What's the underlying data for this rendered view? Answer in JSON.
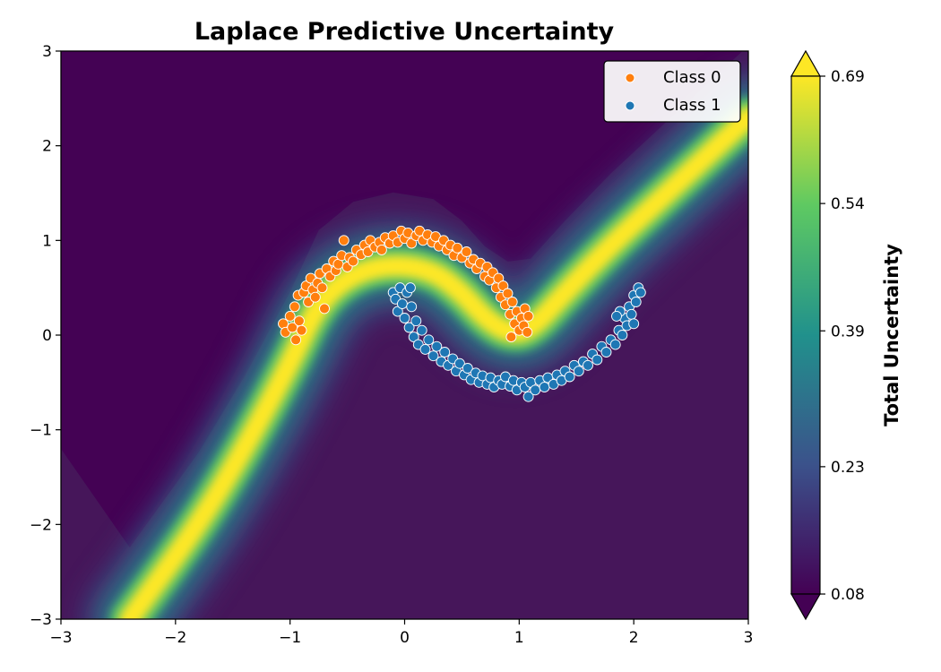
{
  "chart_data": {
    "type": "heatmap",
    "title": "Laplace Predictive Uncertainty",
    "xlabel": "",
    "ylabel": "",
    "xlim": [
      -3,
      3
    ],
    "ylim": [
      -3,
      3
    ],
    "x_ticks": [
      -3,
      -2,
      -1,
      0,
      1,
      2,
      3
    ],
    "y_ticks": [
      -3,
      -2,
      -1,
      0,
      1,
      2,
      3
    ],
    "x_tick_labels": [
      "−3",
      "−2",
      "−1",
      "0",
      "1",
      "2",
      "3"
    ],
    "y_tick_labels": [
      "−3",
      "−2",
      "−1",
      "0",
      "1",
      "2",
      "3"
    ],
    "colormap": "viridis",
    "colorbar": {
      "label": "Total Uncertainty",
      "range": [
        0.08,
        0.69
      ],
      "ticks": [
        0.08,
        0.23,
        0.39,
        0.54,
        0.69
      ],
      "tick_labels": [
        "0.08",
        "0.23",
        "0.39",
        "0.54",
        "0.69"
      ],
      "extend": "both"
    },
    "legend": {
      "position": "top-right",
      "entries": [
        {
          "label": "Class 0",
          "color": "#ff7f0e"
        },
        {
          "label": "Class 1",
          "color": "#1f77b4"
        }
      ]
    },
    "decision_boundary": [
      [
        -2.4,
        -3.0
      ],
      [
        -1.8,
        -2.0
      ],
      [
        -1.4,
        -1.2
      ],
      [
        -1.0,
        -0.3
      ],
      [
        -0.75,
        0.35
      ],
      [
        -0.45,
        0.65
      ],
      [
        -0.1,
        0.75
      ],
      [
        0.25,
        0.68
      ],
      [
        0.5,
        0.45
      ],
      [
        0.7,
        0.18
      ],
      [
        0.9,
        0.02
      ],
      [
        1.1,
        0.05
      ],
      [
        1.4,
        0.45
      ],
      [
        1.8,
        0.95
      ],
      [
        2.2,
        1.4
      ],
      [
        2.6,
        1.85
      ],
      [
        3.0,
        2.3
      ]
    ],
    "series": [
      {
        "name": "Class 0",
        "color": "#ff7f0e",
        "points": [
          [
            -1.06,
            0.12
          ],
          [
            -1.04,
            0.03
          ],
          [
            -1.0,
            0.2
          ],
          [
            -0.98,
            0.08
          ],
          [
            -0.96,
            0.3
          ],
          [
            -0.95,
            -0.05
          ],
          [
            -0.93,
            0.42
          ],
          [
            -0.92,
            0.15
          ],
          [
            -0.9,
            0.05
          ],
          [
            -0.88,
            0.45
          ],
          [
            -0.86,
            0.52
          ],
          [
            -0.84,
            0.35
          ],
          [
            -0.82,
            0.6
          ],
          [
            -0.8,
            0.48
          ],
          [
            -0.78,
            0.4
          ],
          [
            -0.76,
            0.55
          ],
          [
            -0.74,
            0.65
          ],
          [
            -0.72,
            0.5
          ],
          [
            -0.7,
            0.28
          ],
          [
            -0.68,
            0.7
          ],
          [
            -0.65,
            0.62
          ],
          [
            -0.62,
            0.78
          ],
          [
            -0.6,
            0.68
          ],
          [
            -0.58,
            0.75
          ],
          [
            -0.55,
            0.84
          ],
          [
            -0.53,
            1.0
          ],
          [
            -0.5,
            0.72
          ],
          [
            -0.48,
            0.82
          ],
          [
            -0.45,
            0.78
          ],
          [
            -0.42,
            0.9
          ],
          [
            -0.38,
            0.85
          ],
          [
            -0.35,
            0.95
          ],
          [
            -0.32,
            0.88
          ],
          [
            -0.3,
            1.0
          ],
          [
            -0.26,
            0.93
          ],
          [
            -0.22,
            0.98
          ],
          [
            -0.2,
            0.9
          ],
          [
            -0.17,
            1.03
          ],
          [
            -0.13,
            0.97
          ],
          [
            -0.1,
            1.05
          ],
          [
            -0.06,
            0.98
          ],
          [
            -0.03,
            1.1
          ],
          [
            0.0,
            1.02
          ],
          [
            0.03,
            1.08
          ],
          [
            0.06,
            0.97
          ],
          [
            0.1,
            1.05
          ],
          [
            0.13,
            1.1
          ],
          [
            0.16,
            1.0
          ],
          [
            0.2,
            1.06
          ],
          [
            0.24,
            0.98
          ],
          [
            0.27,
            1.04
          ],
          [
            0.3,
            0.94
          ],
          [
            0.34,
            1.0
          ],
          [
            0.37,
            0.9
          ],
          [
            0.4,
            0.95
          ],
          [
            0.43,
            0.84
          ],
          [
            0.46,
            0.92
          ],
          [
            0.5,
            0.82
          ],
          [
            0.54,
            0.88
          ],
          [
            0.57,
            0.76
          ],
          [
            0.6,
            0.8
          ],
          [
            0.63,
            0.7
          ],
          [
            0.66,
            0.76
          ],
          [
            0.7,
            0.62
          ],
          [
            0.72,
            0.72
          ],
          [
            0.74,
            0.58
          ],
          [
            0.77,
            0.66
          ],
          [
            0.8,
            0.5
          ],
          [
            0.82,
            0.6
          ],
          [
            0.84,
            0.4
          ],
          [
            0.86,
            0.52
          ],
          [
            0.88,
            0.32
          ],
          [
            0.9,
            0.44
          ],
          [
            0.92,
            0.22
          ],
          [
            0.94,
            0.35
          ],
          [
            0.96,
            0.12
          ],
          [
            0.98,
            0.25
          ],
          [
            1.0,
            0.05
          ],
          [
            1.02,
            0.18
          ],
          [
            1.04,
            0.1
          ],
          [
            1.05,
            0.28
          ],
          [
            1.07,
            0.03
          ],
          [
            0.93,
            -0.02
          ],
          [
            1.08,
            0.2
          ]
        ]
      },
      {
        "name": "Class 1",
        "color": "#1f77b4",
        "points": [
          [
            -0.1,
            0.45
          ],
          [
            -0.08,
            0.38
          ],
          [
            -0.06,
            0.25
          ],
          [
            -0.04,
            0.5
          ],
          [
            -0.02,
            0.33
          ],
          [
            0.0,
            0.18
          ],
          [
            0.02,
            0.45
          ],
          [
            0.04,
            0.08
          ],
          [
            0.06,
            0.3
          ],
          [
            0.08,
            -0.02
          ],
          [
            0.1,
            0.15
          ],
          [
            0.12,
            -0.1
          ],
          [
            0.15,
            0.05
          ],
          [
            0.18,
            -0.15
          ],
          [
            0.21,
            -0.05
          ],
          [
            0.25,
            -0.22
          ],
          [
            0.28,
            -0.12
          ],
          [
            0.32,
            -0.28
          ],
          [
            0.35,
            -0.18
          ],
          [
            0.38,
            -0.32
          ],
          [
            0.42,
            -0.25
          ],
          [
            0.45,
            -0.38
          ],
          [
            0.48,
            -0.3
          ],
          [
            0.52,
            -0.42
          ],
          [
            0.55,
            -0.35
          ],
          [
            0.58,
            -0.47
          ],
          [
            0.62,
            -0.4
          ],
          [
            0.65,
            -0.5
          ],
          [
            0.68,
            -0.43
          ],
          [
            0.72,
            -0.52
          ],
          [
            0.75,
            -0.45
          ],
          [
            0.78,
            -0.55
          ],
          [
            0.82,
            -0.48
          ],
          [
            0.85,
            -0.52
          ],
          [
            0.88,
            -0.44
          ],
          [
            0.92,
            -0.54
          ],
          [
            0.95,
            -0.48
          ],
          [
            0.98,
            -0.58
          ],
          [
            1.02,
            -0.5
          ],
          [
            1.05,
            -0.55
          ],
          [
            1.08,
            -0.65
          ],
          [
            1.1,
            -0.5
          ],
          [
            1.14,
            -0.58
          ],
          [
            1.18,
            -0.48
          ],
          [
            1.22,
            -0.55
          ],
          [
            1.25,
            -0.45
          ],
          [
            1.3,
            -0.52
          ],
          [
            1.33,
            -0.42
          ],
          [
            1.37,
            -0.48
          ],
          [
            1.4,
            -0.38
          ],
          [
            1.44,
            -0.44
          ],
          [
            1.48,
            -0.32
          ],
          [
            1.52,
            -0.38
          ],
          [
            1.56,
            -0.28
          ],
          [
            1.6,
            -0.32
          ],
          [
            1.64,
            -0.2
          ],
          [
            1.68,
            -0.26
          ],
          [
            1.72,
            -0.12
          ],
          [
            1.76,
            -0.18
          ],
          [
            1.8,
            -0.05
          ],
          [
            1.84,
            -0.1
          ],
          [
            1.87,
            0.05
          ],
          [
            1.9,
            0.0
          ],
          [
            1.92,
            0.18
          ],
          [
            1.94,
            0.1
          ],
          [
            1.96,
            0.3
          ],
          [
            1.98,
            0.22
          ],
          [
            2.0,
            0.42
          ],
          [
            2.02,
            0.35
          ],
          [
            2.04,
            0.5
          ],
          [
            2.06,
            0.45
          ],
          [
            1.88,
            0.25
          ],
          [
            1.85,
            0.2
          ],
          [
            2.0,
            0.12
          ],
          [
            0.05,
            0.5
          ]
        ]
      }
    ]
  }
}
